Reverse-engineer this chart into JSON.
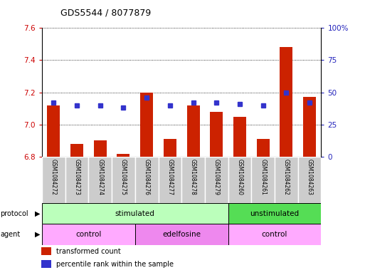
{
  "title": "GDS5544 / 8077879",
  "samples": [
    "GSM1084272",
    "GSM1084273",
    "GSM1084274",
    "GSM1084275",
    "GSM1084276",
    "GSM1084277",
    "GSM1084278",
    "GSM1084279",
    "GSM1084260",
    "GSM1084261",
    "GSM1084262",
    "GSM1084263"
  ],
  "transformed_counts": [
    7.12,
    6.88,
    6.9,
    6.82,
    7.2,
    6.91,
    7.12,
    7.08,
    7.05,
    6.91,
    7.48,
    7.17
  ],
  "percentile_ranks": [
    42,
    40,
    40,
    38,
    46,
    40,
    42,
    42,
    41,
    40,
    50,
    42
  ],
  "ylim_left": [
    6.8,
    7.6
  ],
  "ylim_right": [
    0,
    100
  ],
  "yticks_left": [
    6.8,
    7.0,
    7.2,
    7.4,
    7.6
  ],
  "yticks_right": [
    0,
    25,
    50,
    75,
    100
  ],
  "bar_color": "#cc2200",
  "dot_color": "#3333cc",
  "protocol_groups": [
    {
      "label": "stimulated",
      "start": 0,
      "end": 8,
      "color": "#bbffbb"
    },
    {
      "label": "unstimulated",
      "start": 8,
      "end": 12,
      "color": "#55dd55"
    }
  ],
  "agent_groups": [
    {
      "label": "control",
      "start": 0,
      "end": 4,
      "color": "#ffaaff"
    },
    {
      "label": "edelfosine",
      "start": 4,
      "end": 8,
      "color": "#ee88ee"
    },
    {
      "label": "control",
      "start": 8,
      "end": 12,
      "color": "#ffaaff"
    }
  ],
  "legend_items": [
    {
      "label": "transformed count",
      "color": "#cc2200"
    },
    {
      "label": "percentile rank within the sample",
      "color": "#3333cc"
    }
  ],
  "background_color": "#ffffff",
  "left_axis_color": "#cc0000",
  "right_axis_color": "#2222bb",
  "cell_bg_color": "#cccccc",
  "cell_line_color": "#999999"
}
